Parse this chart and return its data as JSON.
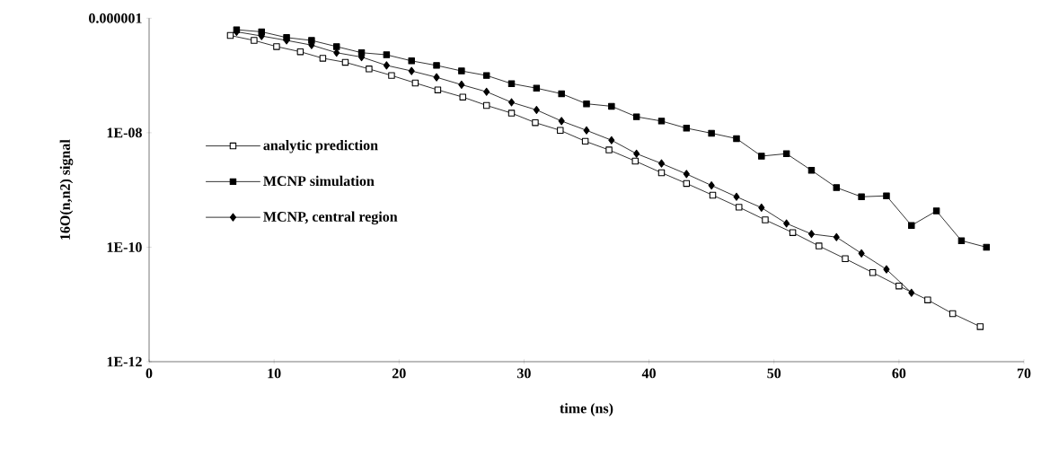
{
  "chart_data": {
    "type": "line",
    "xlabel": "time (ns)",
    "ylabel": "16O(n,n2) signal",
    "log": "y",
    "legend": "left",
    "line_style": "solid",
    "xlim": [
      0,
      70
    ],
    "xticks": [
      0,
      10,
      20,
      30,
      40,
      50,
      60,
      70
    ],
    "ylim": [
      1e-12,
      1e-06
    ],
    "yticks": [
      {
        "value": 1e-06,
        "label": "0.000001"
      },
      {
        "value": 1e-08,
        "label": "1E-08"
      },
      {
        "value": 1e-10,
        "label": "1E-10"
      },
      {
        "value": 1e-12,
        "label": "1E-12"
      }
    ],
    "series": [
      {
        "name": "analytic prediction",
        "color": "#ffffff",
        "marker": "square",
        "x": [
          6.5,
          8.4,
          10.2,
          12.1,
          13.9,
          15.7,
          17.6,
          19.4,
          21.3,
          23.1,
          25.1,
          27.0,
          29.0,
          30.9,
          32.9,
          34.9,
          36.8,
          38.9,
          41.0,
          43.0,
          45.1,
          47.2,
          49.3,
          51.5,
          53.6,
          55.7,
          57.9,
          60.0,
          62.3,
          64.3,
          66.5
        ],
        "values": [
          5e-07,
          4.1e-07,
          3.2e-07,
          2.6e-07,
          2e-07,
          1.7e-07,
          1.3e-07,
          1e-07,
          7.4e-08,
          5.6e-08,
          4.2e-08,
          3e-08,
          2.2e-08,
          1.5e-08,
          1.1e-08,
          7.1e-09,
          5e-09,
          3.2e-09,
          2e-09,
          1.3e-09,
          8.1e-10,
          5e-10,
          3e-10,
          1.8e-10,
          1.05e-10,
          6.3e-11,
          3.6e-11,
          2.1e-11,
          1.2e-11,
          6.9e-12,
          4.1e-12
        ]
      },
      {
        "name": "MCNP simulation",
        "color": "#000000",
        "marker": "square",
        "x": [
          7,
          9,
          11,
          13,
          15,
          17,
          19,
          21,
          23,
          25,
          27,
          29,
          31,
          33,
          35,
          37,
          39,
          41,
          43,
          45,
          47,
          49,
          51,
          53,
          55,
          57,
          59,
          61,
          63,
          65,
          67
        ],
        "values": [
          6.3e-07,
          5.8e-07,
          4.6e-07,
          4.1e-07,
          3.2e-07,
          2.5e-07,
          2.3e-07,
          1.8e-07,
          1.5e-07,
          1.2e-07,
          1e-07,
          7.2e-08,
          6e-08,
          4.8e-08,
          3.2e-08,
          2.9e-08,
          1.9e-08,
          1.6e-08,
          1.2e-08,
          9.8e-09,
          7.9e-09,
          3.9e-09,
          4.3e-09,
          2.2e-09,
          1.1e-09,
          7.6e-10,
          7.9e-10,
          2.4e-10,
          4.3e-10,
          1.3e-10,
          1e-10
        ]
      },
      {
        "name": "MCNP, central region",
        "color": "#000000",
        "marker": "diamond",
        "x": [
          7,
          9,
          11,
          13,
          15,
          17,
          19,
          21,
          23,
          25,
          27,
          29,
          31,
          33,
          35,
          37,
          39,
          41,
          43,
          45,
          47,
          49,
          51,
          53,
          55,
          57,
          59,
          61
        ],
        "values": [
          5.8e-07,
          4.9e-07,
          4.1e-07,
          3.4e-07,
          2.5e-07,
          2.1e-07,
          1.5e-07,
          1.2e-07,
          9.3e-08,
          6.9e-08,
          5.2e-08,
          3.4e-08,
          2.5e-08,
          1.6e-08,
          1.1e-08,
          7.4e-09,
          4.3e-09,
          2.9e-09,
          1.9e-09,
          1.2e-09,
          7.6e-10,
          4.9e-10,
          2.6e-10,
          1.7e-10,
          1.5e-10,
          7.8e-11,
          4.1e-11,
          1.6e-11
        ]
      }
    ]
  }
}
